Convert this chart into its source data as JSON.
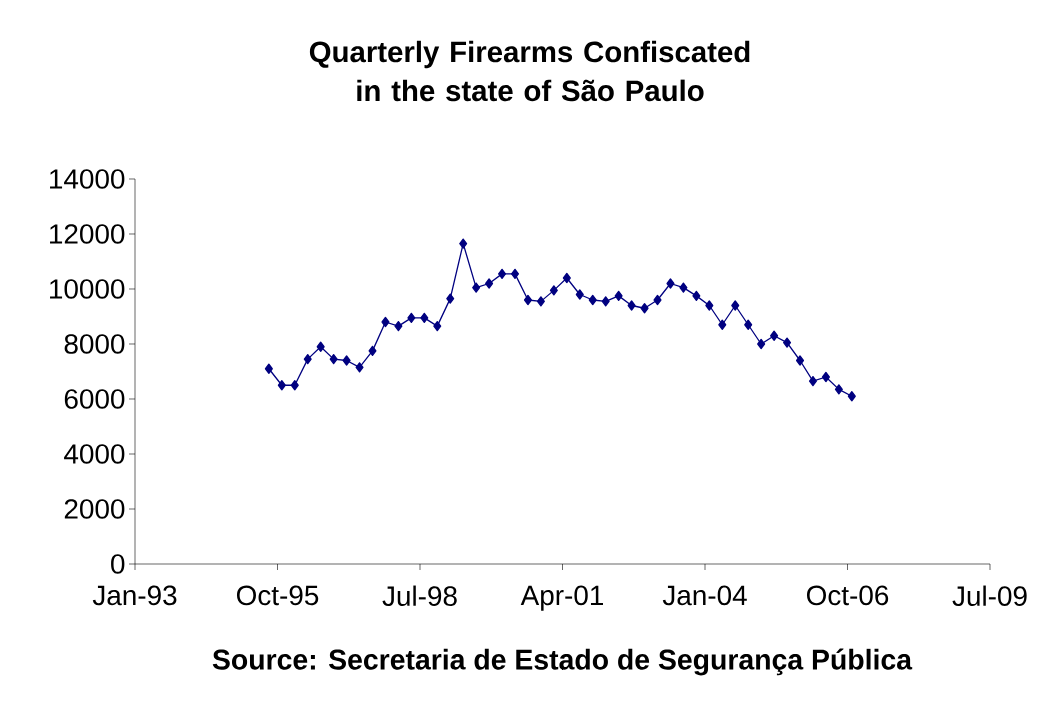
{
  "chart_data": {
    "type": "line",
    "title": "Quarterly Firearms Confiscated in the state of São Paulo",
    "annotations": [
      "Source:  Secretaria de Estado de Segurança Pública"
    ],
    "x": [
      "1995-08",
      "1995-11",
      "1996-02",
      "1996-05",
      "1996-08",
      "1996-11",
      "1997-02",
      "1997-05",
      "1997-08",
      "1997-11",
      "1998-02",
      "1998-05",
      "1998-08",
      "1998-11",
      "1999-02",
      "1999-05",
      "1999-08",
      "1999-11",
      "2000-02",
      "2000-05",
      "2000-08",
      "2000-11",
      "2001-02",
      "2001-05",
      "2001-08",
      "2001-11",
      "2002-02",
      "2002-05",
      "2002-08",
      "2002-11",
      "2003-02",
      "2003-05",
      "2003-08",
      "2003-11",
      "2004-02",
      "2004-05",
      "2004-08",
      "2004-11",
      "2005-02",
      "2005-05",
      "2005-08",
      "2005-11",
      "2006-02",
      "2006-05",
      "2006-08",
      "2006-11"
    ],
    "values": [
      7100,
      6500,
      6500,
      7450,
      7900,
      7450,
      7400,
      7150,
      7750,
      8800,
      8650,
      8950,
      8950,
      8650,
      9650,
      11650,
      10050,
      10200,
      10550,
      10550,
      9600,
      9550,
      9950,
      10400,
      9800,
      9600,
      9550,
      9750,
      9400,
      9300,
      9600,
      10200,
      10050,
      9750,
      9400,
      8700,
      9400,
      8700,
      8000,
      8300,
      8050,
      7400,
      6650,
      6800,
      6350,
      6100
    ],
    "color": "#000080",
    "marker": "diamond",
    "line_style": "solid",
    "xlim": [
      "1993-01",
      "2009-07"
    ],
    "xticks": [
      {
        "value": "1993-01",
        "label": "Jan-93"
      },
      {
        "value": "1995-10",
        "label": "Oct-95"
      },
      {
        "value": "1998-07",
        "label": "Jul-98"
      },
      {
        "value": "2001-04",
        "label": "Apr-01"
      },
      {
        "value": "2004-01",
        "label": "Jan-04"
      },
      {
        "value": "2006-10",
        "label": "Oct-06"
      },
      {
        "value": "2009-07",
        "label": "Jul-09"
      }
    ],
    "ylim": [
      0,
      14000
    ],
    "yticks": [
      0,
      2000,
      4000,
      6000,
      8000,
      10000,
      12000,
      14000
    ],
    "grid": false
  }
}
